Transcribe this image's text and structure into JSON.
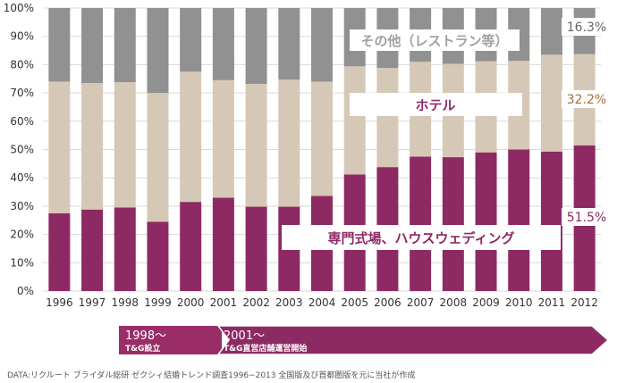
{
  "chart_data": {
    "type": "bar",
    "stacked": true,
    "percent": true,
    "categories": [
      "1996",
      "1997",
      "1998",
      "1999",
      "2000",
      "2001",
      "2002",
      "2003",
      "2004",
      "2005",
      "2006",
      "2007",
      "2008",
      "2009",
      "2010",
      "2011",
      "2012"
    ],
    "series": [
      {
        "name": "専門式場、ハウスウェディング",
        "color": "#8e2a63",
        "values": [
          27.5,
          28.8,
          29.5,
          24.5,
          31.5,
          33.0,
          29.8,
          29.8,
          33.6,
          41.2,
          43.8,
          47.5,
          47.3,
          49.0,
          50.0,
          49.3,
          51.5
        ]
      },
      {
        "name": "ホテル",
        "color": "#d6c8b6",
        "values": [
          46.5,
          44.7,
          44.3,
          45.5,
          46.0,
          41.5,
          43.4,
          44.9,
          40.4,
          38.2,
          35.0,
          33.5,
          33.0,
          32.2,
          31.3,
          34.2,
          32.2
        ]
      },
      {
        "name": "その他（レストラン等）",
        "color": "#919191",
        "values": [
          26.0,
          26.5,
          26.2,
          30.0,
          22.5,
          25.5,
          26.8,
          25.3,
          26.0,
          20.6,
          21.2,
          19.0,
          19.7,
          18.8,
          18.7,
          16.5,
          16.3
        ]
      }
    ],
    "ylim": [
      0,
      100
    ],
    "yticks": [
      "0%",
      "10%",
      "20%",
      "30%",
      "40%",
      "50%",
      "60%",
      "70%",
      "80%",
      "90%",
      "100%"
    ],
    "value_labels": [
      "51.5%",
      "32.2%",
      "16.3%"
    ],
    "grid": true
  },
  "timeline": {
    "arrow1_year": "1998〜",
    "arrow1_text": "T&G設立",
    "arrow2_year": "2001〜",
    "arrow2_text": "T&G直営店舗運営開始"
  },
  "source": "DATA:リクルート ブライダル総研 ゼクシィ結婚トレンド調査1996−2013 全国版及び首都圏版を元に当社が作成"
}
